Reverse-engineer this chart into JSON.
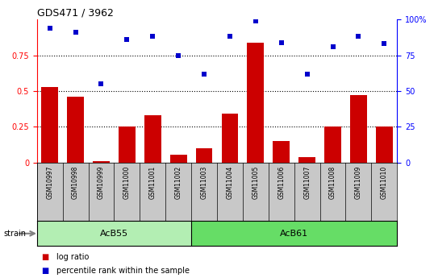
{
  "title": "GDS471 / 3962",
  "samples": [
    "GSM10997",
    "GSM10998",
    "GSM10999",
    "GSM11000",
    "GSM11001",
    "GSM11002",
    "GSM11003",
    "GSM11004",
    "GSM11005",
    "GSM11006",
    "GSM11007",
    "GSM11008",
    "GSM11009",
    "GSM11010"
  ],
  "log_ratio": [
    0.53,
    0.46,
    0.01,
    0.25,
    0.33,
    0.055,
    0.1,
    0.34,
    0.84,
    0.15,
    0.04,
    0.25,
    0.47,
    0.25
  ],
  "percentile_rank_vals": [
    0.94,
    0.91,
    0.55,
    0.86,
    0.88,
    0.75,
    0.62,
    0.88,
    0.99,
    0.84,
    0.62,
    0.81,
    0.88,
    0.83
  ],
  "groups": [
    {
      "label": "AcB55",
      "start": 0,
      "end": 6
    },
    {
      "label": "AcB61",
      "start": 6,
      "end": 14
    }
  ],
  "group_colors": [
    "#b3eeb3",
    "#66dd66"
  ],
  "bar_color": "#cc0000",
  "scatter_color": "#0000cc",
  "ylim_left": [
    0,
    1.0
  ],
  "ylim_right": [
    0,
    100
  ],
  "yticks_left": [
    0,
    0.25,
    0.5,
    0.75
  ],
  "yticks_right": [
    0,
    25,
    50,
    75,
    100
  ],
  "dotted_lines": [
    0.25,
    0.5,
    0.75
  ],
  "group_row_color": "#c8c8c8",
  "legend_items": [
    {
      "label": "log ratio",
      "color": "#cc0000"
    },
    {
      "label": "percentile rank within the sample",
      "color": "#0000cc"
    }
  ]
}
